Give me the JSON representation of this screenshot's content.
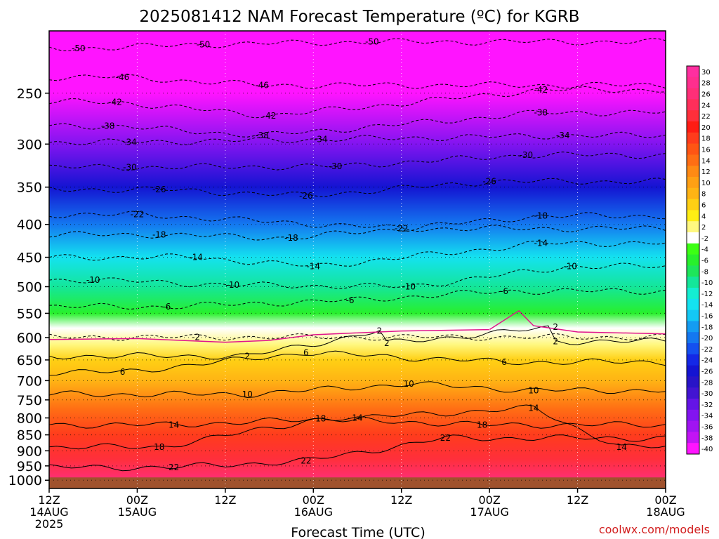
{
  "chart_data": {
    "type": "heatmap",
    "title": "2025081412 NAM Forecast Temperature (ºC) for KGRB",
    "xlabel": "Forecast Time (UTC)",
    "ylabel": "",
    "watermark": "coolwx.com/models",
    "x_ticks": [
      {
        "t": 0,
        "l1": "12Z",
        "l2": "14AUG",
        "l3": "2025"
      },
      {
        "t": 12,
        "l1": "00Z",
        "l2": "15AUG",
        "l3": ""
      },
      {
        "t": 24,
        "l1": "12Z",
        "l2": "",
        "l3": ""
      },
      {
        "t": 36,
        "l1": "00Z",
        "l2": "16AUG",
        "l3": ""
      },
      {
        "t": 48,
        "l1": "12Z",
        "l2": "",
        "l3": ""
      },
      {
        "t": 60,
        "l1": "00Z",
        "l2": "17AUG",
        "l3": ""
      },
      {
        "t": 72,
        "l1": "12Z",
        "l2": "",
        "l3": ""
      },
      {
        "t": 84,
        "l1": "00Z",
        "l2": "18AUG",
        "l3": ""
      }
    ],
    "x_range_hours": [
      0,
      84
    ],
    "y_ticks": [
      "250",
      "300",
      "350",
      "400",
      "450",
      "500",
      "550",
      "600",
      "650",
      "700",
      "750",
      "800",
      "850",
      "900",
      "950",
      "1000"
    ],
    "y_tick_values": [
      250,
      300,
      350,
      400,
      450,
      500,
      550,
      600,
      650,
      700,
      750,
      800,
      850,
      900,
      950,
      1000
    ],
    "y_range_hPa": [
      200,
      1030
    ],
    "y_scale": "log-pressure",
    "ground_top_hPa": 990,
    "freezing_level_hPa": [
      [
        0,
        604
      ],
      [
        12,
        602
      ],
      [
        24,
        610
      ],
      [
        30,
        606
      ],
      [
        36,
        594
      ],
      [
        48,
        586
      ],
      [
        60,
        583
      ],
      [
        64,
        545
      ],
      [
        66,
        575
      ],
      [
        72,
        588
      ],
      [
        84,
        592
      ]
    ],
    "colorbar": {
      "labels": [
        "30",
        "28",
        "26",
        "24",
        "22",
        "20",
        "18",
        "16",
        "14",
        "12",
        "10",
        "8",
        "6",
        "4",
        "2",
        "-2",
        "-4",
        "-6",
        "-8",
        "-10",
        "-12",
        "-14",
        "-16",
        "-18",
        "-20",
        "-22",
        "-24",
        "-26",
        "-28",
        "-30",
        "-32",
        "-34",
        "-36",
        "-38",
        "-40"
      ],
      "colors": [
        "#ff2fa0",
        "#ff2f8e",
        "#ff2f78",
        "#ff2f5a",
        "#ff2f3a",
        "#ff1c14",
        "#ff3c1c",
        "#ff5514",
        "#ff6e14",
        "#ff8a14",
        "#ffa014",
        "#ffb414",
        "#ffd014",
        "#ffee14",
        "#fff880",
        "#ffffff",
        "#3cff14",
        "#28f02c",
        "#1ee65a",
        "#14e69a",
        "#14eed2",
        "#14e2f0",
        "#14c8f5",
        "#149cf2",
        "#1478f0",
        "#1450f0",
        "#1428e6",
        "#1414d2",
        "#2814c8",
        "#4214d2",
        "#6414e6",
        "#8214f0",
        "#a014f2",
        "#c214f5",
        "#ff14ff"
      ]
    },
    "colorbar_position": "right",
    "shading": {
      "above_zero_series_C": [
        [
          1000,
          26
        ],
        [
          925,
          22
        ],
        [
          850,
          18
        ],
        [
          775,
          14
        ],
        [
          700,
          8
        ],
        [
          650,
          6
        ],
        [
          615,
          2
        ]
      ],
      "below_zero_series_C": [
        [
          580,
          -2
        ],
        [
          550,
          -6
        ],
        [
          500,
          -10
        ],
        [
          450,
          -14
        ],
        [
          400,
          -20
        ],
        [
          350,
          -26
        ],
        [
          300,
          -34
        ],
        [
          250,
          -42
        ],
        [
          200,
          -52
        ]
      ]
    },
    "contours": {
      "dashed_levels": [
        -50,
        -46,
        -42,
        -38,
        -34,
        -30,
        -26,
        -22,
        -18,
        -14,
        -10,
        -6,
        -2
      ],
      "solid_levels": [
        2,
        6,
        10,
        14,
        18,
        22
      ],
      "labels": [
        {
          "t": 4,
          "p": 213,
          "text": "-50"
        },
        {
          "t": 21,
          "p": 210,
          "text": "-50"
        },
        {
          "t": 44,
          "p": 208,
          "text": "-50"
        },
        {
          "t": 10,
          "p": 236,
          "text": "-46"
        },
        {
          "t": 29,
          "p": 243,
          "text": "-46"
        },
        {
          "t": 9,
          "p": 258,
          "text": "-42"
        },
        {
          "t": 30,
          "p": 271,
          "text": "-42"
        },
        {
          "t": 67,
          "p": 247,
          "text": "-42"
        },
        {
          "t": 8,
          "p": 281,
          "text": "-38"
        },
        {
          "t": 29,
          "p": 291,
          "text": "-38"
        },
        {
          "t": 67,
          "p": 268,
          "text": "-38"
        },
        {
          "t": 11,
          "p": 298,
          "text": "-34"
        },
        {
          "t": 37,
          "p": 295,
          "text": "-34"
        },
        {
          "t": 70,
          "p": 291,
          "text": "-34"
        },
        {
          "t": 11,
          "p": 326,
          "text": "-30"
        },
        {
          "t": 39,
          "p": 325,
          "text": "-30"
        },
        {
          "t": 65,
          "p": 312,
          "text": "-30"
        },
        {
          "t": 15,
          "p": 353,
          "text": "-26"
        },
        {
          "t": 35,
          "p": 361,
          "text": "-26"
        },
        {
          "t": 60,
          "p": 343,
          "text": "-26"
        },
        {
          "t": 12,
          "p": 386,
          "text": "-22"
        },
        {
          "t": 48,
          "p": 406,
          "text": "-22"
        },
        {
          "t": 15,
          "p": 415,
          "text": "-18"
        },
        {
          "t": 33,
          "p": 420,
          "text": "-18"
        },
        {
          "t": 67,
          "p": 388,
          "text": "-18"
        },
        {
          "t": 20,
          "p": 450,
          "text": "-14"
        },
        {
          "t": 36,
          "p": 465,
          "text": "-14"
        },
        {
          "t": 67,
          "p": 428,
          "text": "-14"
        },
        {
          "t": 6,
          "p": 488,
          "text": "-10"
        },
        {
          "t": 25,
          "p": 497,
          "text": "-10"
        },
        {
          "t": 49,
          "p": 500,
          "text": "-10"
        },
        {
          "t": 71,
          "p": 465,
          "text": "-10"
        },
        {
          "t": 16,
          "p": 537,
          "text": "-6"
        },
        {
          "t": 41,
          "p": 525,
          "text": "-6"
        },
        {
          "t": 62,
          "p": 508,
          "text": "-6"
        },
        {
          "t": 20,
          "p": 599,
          "text": "-2"
        },
        {
          "t": 45,
          "p": 586,
          "text": "2"
        },
        {
          "t": 46,
          "p": 612,
          "text": "2"
        },
        {
          "t": 27,
          "p": 641,
          "text": "2"
        },
        {
          "t": 69,
          "p": 578,
          "text": "2"
        },
        {
          "t": 69,
          "p": 608,
          "text": "2"
        },
        {
          "t": 35,
          "p": 633,
          "text": "6"
        },
        {
          "t": 62,
          "p": 655,
          "text": "6"
        },
        {
          "t": 10,
          "p": 679,
          "text": "6"
        },
        {
          "t": 27,
          "p": 735,
          "text": "10"
        },
        {
          "t": 49,
          "p": 708,
          "text": "10"
        },
        {
          "t": 66,
          "p": 725,
          "text": "10"
        },
        {
          "t": 17,
          "p": 820,
          "text": "14"
        },
        {
          "t": 42,
          "p": 800,
          "text": "14"
        },
        {
          "t": 66,
          "p": 772,
          "text": "14"
        },
        {
          "t": 78,
          "p": 888,
          "text": "14"
        },
        {
          "t": 37,
          "p": 802,
          "text": "18"
        },
        {
          "t": 59,
          "p": 820,
          "text": "18"
        },
        {
          "t": 15,
          "p": 888,
          "text": "18"
        },
        {
          "t": 35,
          "p": 933,
          "text": "22"
        },
        {
          "t": 54,
          "p": 860,
          "text": "22"
        },
        {
          "t": 17,
          "p": 955,
          "text": "22"
        }
      ]
    }
  }
}
